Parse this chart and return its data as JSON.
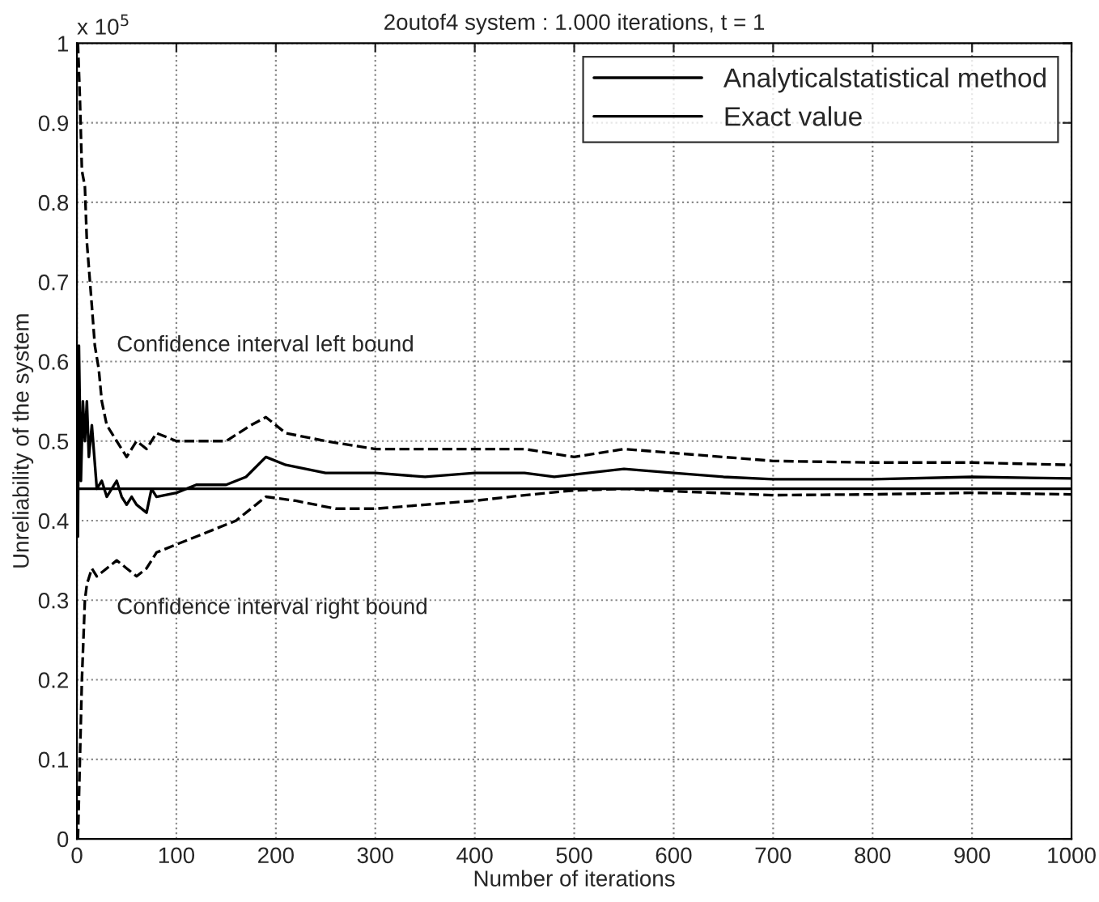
{
  "chart_data": {
    "type": "line",
    "title": "2outof4 system : 1.000 iterations, t = 1",
    "xlabel": "Number of iterations",
    "ylabel": "Unreliability of the system",
    "xlim": [
      0,
      1000
    ],
    "xticks": [
      0,
      100,
      200,
      300,
      400,
      500,
      600,
      700,
      800,
      900,
      1000
    ],
    "ylim": [
      0,
      1
    ],
    "yticks": [
      0,
      0.1,
      0.2,
      0.3,
      0.4,
      0.5,
      0.6,
      0.7,
      0.8,
      0.9,
      1
    ],
    "grid": true,
    "legend": "top right",
    "line_style": "solid",
    "annotations": [
      "x 10$^{5}$",
      "Confidence interval left bound",
      "Confidence interval right bound"
    ],
    "series": [
      {
        "name": "Analyticalstatistical method",
        "color": "#000000",
        "x": [
          1,
          2,
          4,
          6,
          8,
          10,
          12,
          15,
          20,
          25,
          30,
          35,
          40,
          45,
          50,
          55,
          60,
          70,
          75,
          80,
          100,
          120,
          150,
          170,
          190,
          210,
          250,
          300,
          350,
          400,
          450,
          480,
          550,
          600,
          650,
          700,
          800,
          900,
          1000
        ],
        "values": [
          0.38,
          0.62,
          0.45,
          0.55,
          0.5,
          0.55,
          0.48,
          0.52,
          0.44,
          0.45,
          0.43,
          0.44,
          0.45,
          0.43,
          0.42,
          0.43,
          0.42,
          0.41,
          0.44,
          0.43,
          0.435,
          0.445,
          0.445,
          0.455,
          0.48,
          0.47,
          0.46,
          0.46,
          0.455,
          0.46,
          0.46,
          0.455,
          0.465,
          0.46,
          0.455,
          0.452,
          0.452,
          0.455,
          0.453
        ]
      },
      {
        "name": "Exact value",
        "color": "#000000",
        "x": [
          0,
          1000
        ],
        "values": [
          0.44,
          0.44
        ]
      },
      {
        "color": "#000000",
        "line_style": "dashed",
        "x": [
          1,
          3,
          5,
          8,
          10,
          15,
          18,
          22,
          25,
          30,
          40,
          50,
          60,
          70,
          80,
          100,
          150,
          175,
          190,
          210,
          250,
          300,
          350,
          400,
          450,
          500,
          550,
          600,
          700,
          800,
          900,
          1000
        ],
        "values": [
          1.0,
          0.93,
          0.84,
          0.82,
          0.75,
          0.67,
          0.62,
          0.59,
          0.55,
          0.52,
          0.5,
          0.48,
          0.5,
          0.49,
          0.51,
          0.5,
          0.5,
          0.52,
          0.53,
          0.51,
          0.5,
          0.49,
          0.49,
          0.49,
          0.49,
          0.48,
          0.49,
          0.485,
          0.475,
          0.473,
          0.473,
          0.47
        ]
      },
      {
        "color": "#000000",
        "line_style": "dashed",
        "x": [
          1,
          3,
          5,
          8,
          10,
          15,
          20,
          30,
          40,
          50,
          60,
          70,
          80,
          100,
          130,
          160,
          180,
          190,
          220,
          260,
          300,
          350,
          400,
          450,
          500,
          550,
          600,
          700,
          800,
          900,
          1000
        ],
        "values": [
          0.0,
          0.1,
          0.2,
          0.3,
          0.32,
          0.34,
          0.33,
          0.34,
          0.35,
          0.34,
          0.33,
          0.34,
          0.36,
          0.37,
          0.385,
          0.4,
          0.42,
          0.43,
          0.425,
          0.415,
          0.415,
          0.42,
          0.425,
          0.432,
          0.438,
          0.44,
          0.437,
          0.432,
          0.433,
          0.435,
          0.433
        ]
      }
    ]
  }
}
